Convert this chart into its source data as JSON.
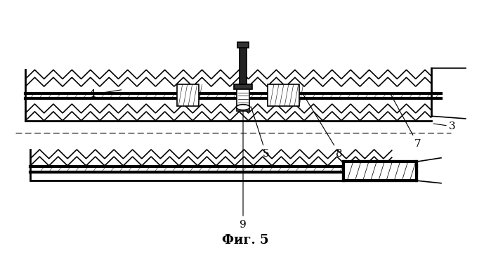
{
  "caption": "Фиг. 5",
  "background_color": "#ffffff",
  "line_color": "#000000",
  "figsize": [
    6.99,
    3.63
  ],
  "dpi": 100
}
